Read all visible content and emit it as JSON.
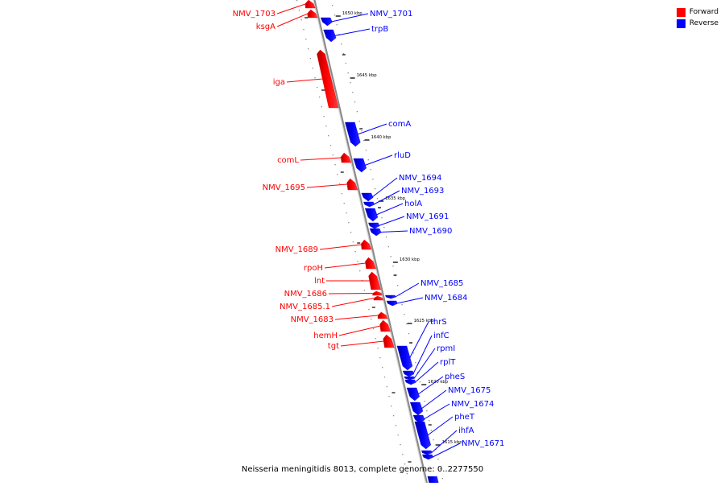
{
  "legend": {
    "forward_label": "Forward",
    "reverse_label": "Reverse",
    "forward_color": "#ff0000",
    "reverse_color": "#0000ff"
  },
  "caption": "Neisseria meningitidis 8013, complete genome: 0..2277550",
  "ticks": [
    "1650 kbp",
    "1645 kbp",
    "1640 kbp",
    "1635 kbp",
    "1630 kbp",
    "1625 kbp",
    "1620 kbp",
    "1615 kbp"
  ],
  "genes": [
    {
      "name": "NMV_1703",
      "strand": "forward",
      "length": 1
    },
    {
      "name": "ksgA",
      "strand": "forward",
      "length": 1
    },
    {
      "name": "NMV_1701",
      "strand": "reverse",
      "length": 1
    },
    {
      "name": "trpB",
      "strand": "reverse",
      "length": 1.3
    },
    {
      "name": "iga",
      "strand": "forward",
      "length": 5.5
    },
    {
      "name": "comA",
      "strand": "reverse",
      "length": 2.3
    },
    {
      "name": "rluD",
      "strand": "reverse",
      "length": 1
    },
    {
      "name": "comL",
      "strand": "forward",
      "length": 0.9
    },
    {
      "name": "NMV_1695",
      "strand": "forward",
      "length": 1
    },
    {
      "name": "NMV_1694",
      "strand": "reverse",
      "length": 0.8
    },
    {
      "name": "NMV_1693",
      "strand": "reverse",
      "length": 0.3
    },
    {
      "name": "holA",
      "strand": "reverse",
      "length": 1
    },
    {
      "name": "NMV_1691",
      "strand": "reverse",
      "length": 0.5
    },
    {
      "name": "NMV_1690",
      "strand": "reverse",
      "length": 0.6
    },
    {
      "name": "NMV_1689",
      "strand": "forward",
      "length": 1
    },
    {
      "name": "rpoH",
      "strand": "forward",
      "length": 1
    },
    {
      "name": "lnt",
      "strand": "forward",
      "length": 1.6
    },
    {
      "name": "NMV_1686",
      "strand": "forward",
      "length": 0.3
    },
    {
      "name": "NMV_1685.1",
      "strand": "forward",
      "length": 0.3
    },
    {
      "name": "NMV_1685",
      "strand": "reverse",
      "length": 0.2
    },
    {
      "name": "NMV_1684",
      "strand": "reverse",
      "length": 0.3
    },
    {
      "name": "NMV_1683",
      "strand": "forward",
      "length": 0.5
    },
    {
      "name": "hemH",
      "strand": "forward",
      "length": 1
    },
    {
      "name": "tgt",
      "strand": "forward",
      "length": 1.1
    },
    {
      "name": "thrS",
      "strand": "reverse",
      "length": 2.1
    },
    {
      "name": "infC",
      "strand": "reverse",
      "length": 0.5
    },
    {
      "name": "rpmI",
      "strand": "reverse",
      "length": 0.2
    },
    {
      "name": "rplT",
      "strand": "reverse",
      "length": 0.4
    },
    {
      "name": "pheS",
      "strand": "reverse",
      "length": 1.1
    },
    {
      "name": "NMV_1675",
      "strand": "reverse",
      "length": 1.1
    },
    {
      "name": "NMV_1674",
      "strand": "reverse",
      "length": 0.8
    },
    {
      "name": "pheT",
      "strand": "reverse",
      "length": 2.4
    },
    {
      "name": "ihfA",
      "strand": "reverse",
      "length": 0.3
    },
    {
      "name": "NMV_1671",
      "strand": "reverse",
      "length": 0.3
    }
  ]
}
